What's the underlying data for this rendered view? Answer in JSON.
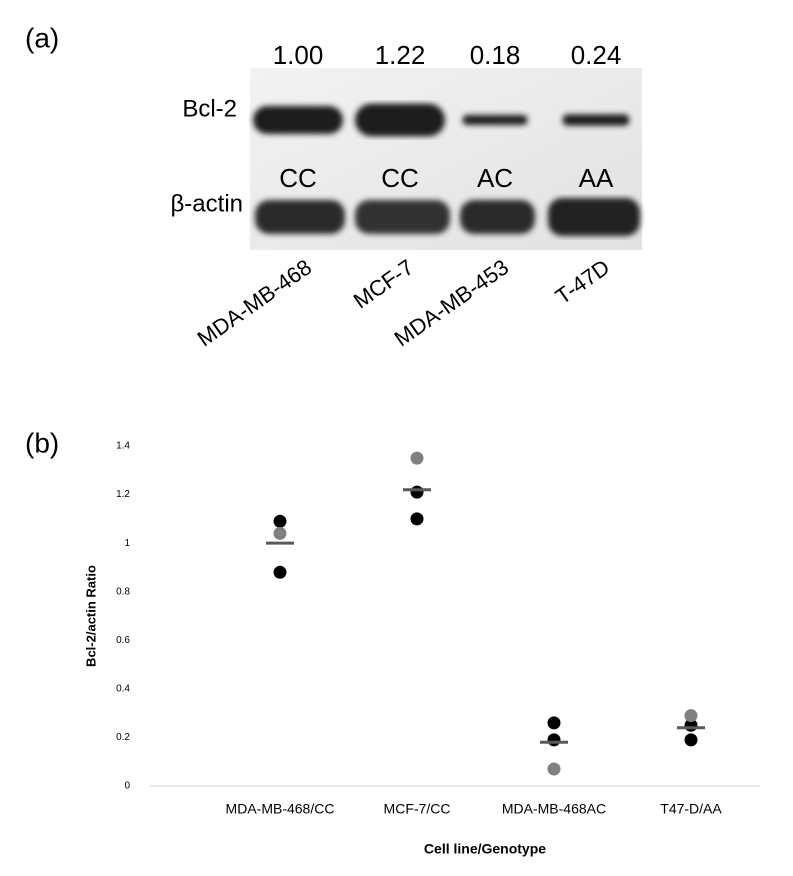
{
  "panel_a": {
    "panel_label": "(a)",
    "ratios": [
      {
        "value": 1.0,
        "label": "1.00"
      },
      {
        "value": 1.22,
        "label": "1.22"
      },
      {
        "value": 0.18,
        "label": "0.18"
      },
      {
        "value": 0.24,
        "label": "0.24"
      }
    ],
    "protein_label": "Bcl-2",
    "control_label": "β-actin",
    "genotypes": [
      "CC",
      "CC",
      "AC",
      "AA"
    ],
    "cell_lines": [
      "MDA-MB-468",
      "MCF-7",
      "MDA-MB-453",
      "T-47D"
    ]
  },
  "chart_data": {
    "type": "dot",
    "panel_label": "(b)",
    "categories": [
      "MDA-MB-468/CC",
      "MCF-7/CC",
      "MDA-MB-468AC",
      "T47-D/AA"
    ],
    "series": [
      {
        "color": "#000000",
        "values": [
          1.09,
          1.21,
          0.26,
          0.25
        ]
      },
      {
        "color": "#000000",
        "values": [
          0.88,
          1.1,
          0.19,
          0.19
        ]
      },
      {
        "color": "#808080",
        "values": [
          1.04,
          1.35,
          0.07,
          0.29
        ]
      }
    ],
    "means": [
      1.0,
      1.22,
      0.18,
      0.24
    ],
    "mean_color": "#595959",
    "ylim": [
      0,
      1.4
    ],
    "yticks": [
      0,
      0.2,
      0.4,
      0.6,
      0.8,
      1,
      1.2,
      1.4
    ],
    "y_label": "Bcl-2/actin Ratio",
    "x_label": "Cell line/Genotype"
  }
}
